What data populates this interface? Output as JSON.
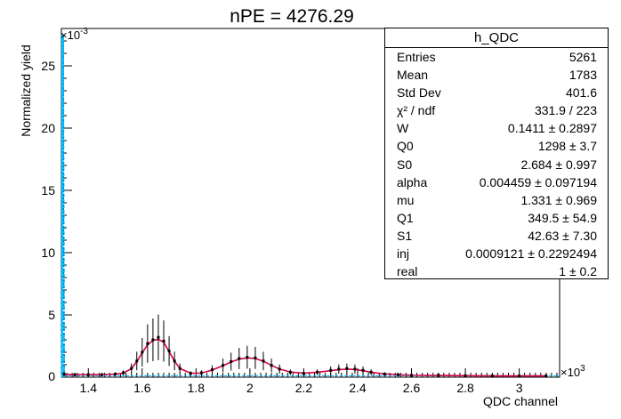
{
  "chart_data": {
    "type": "line",
    "title": "nPE = 4276.29",
    "xlabel": "QDC channel",
    "ylabel": "Normalized yield",
    "x_multiplier": "×10",
    "x_multiplier_exp": "3",
    "y_multiplier": "×10",
    "y_multiplier_exp": "-3",
    "xlim": [
      1.3,
      3.15
    ],
    "ylim": [
      0,
      28
    ],
    "x_ticks": [
      "1.4",
      "1.6",
      "1.8",
      "2",
      "2.2",
      "2.4",
      "2.6",
      "2.8",
      "3"
    ],
    "y_ticks": [
      "5",
      "10",
      "15",
      "20",
      "25"
    ],
    "origin_label": "0",
    "grid": false,
    "series": [
      {
        "role": "data points",
        "color": "#000000",
        "x": [
          1.31,
          1.35,
          1.4,
          1.45,
          1.5,
          1.53,
          1.56,
          1.58,
          1.6,
          1.62,
          1.64,
          1.66,
          1.68,
          1.7,
          1.72,
          1.74,
          1.78,
          1.82,
          1.86,
          1.9,
          1.93,
          1.96,
          1.99,
          2.02,
          2.05,
          2.08,
          2.11,
          2.15,
          2.2,
          2.25,
          2.3,
          2.33,
          2.36,
          2.39,
          2.42,
          2.45,
          2.5,
          2.55,
          2.6,
          2.7,
          2.8,
          2.9,
          3.0,
          3.1
        ],
        "y": [
          0.25,
          0.2,
          0.2,
          0.2,
          0.25,
          0.35,
          0.7,
          1.3,
          2.0,
          2.7,
          3.0,
          3.2,
          2.9,
          2.1,
          1.3,
          0.7,
          0.3,
          0.35,
          0.6,
          0.95,
          1.25,
          1.5,
          1.6,
          1.55,
          1.3,
          0.95,
          0.65,
          0.4,
          0.3,
          0.4,
          0.55,
          0.65,
          0.7,
          0.65,
          0.55,
          0.4,
          0.25,
          0.2,
          0.15,
          0.15,
          0.12,
          0.1,
          0.1,
          0.1
        ]
      },
      {
        "role": "fit",
        "color": "#d8004a",
        "x": [
          1.31,
          1.35,
          1.4,
          1.45,
          1.5,
          1.53,
          1.56,
          1.58,
          1.6,
          1.62,
          1.64,
          1.66,
          1.68,
          1.7,
          1.72,
          1.74,
          1.78,
          1.82,
          1.86,
          1.9,
          1.93,
          1.96,
          1.99,
          2.02,
          2.05,
          2.08,
          2.11,
          2.15,
          2.2,
          2.25,
          2.3,
          2.33,
          2.36,
          2.39,
          2.42,
          2.45,
          2.5,
          2.55,
          2.6,
          2.7,
          2.8,
          2.9,
          3.0,
          3.1
        ],
        "y": [
          0.22,
          0.2,
          0.2,
          0.2,
          0.24,
          0.33,
          0.68,
          1.25,
          1.95,
          2.6,
          2.95,
          3.05,
          2.8,
          2.05,
          1.3,
          0.7,
          0.32,
          0.33,
          0.58,
          0.92,
          1.22,
          1.45,
          1.55,
          1.5,
          1.28,
          0.95,
          0.65,
          0.42,
          0.32,
          0.4,
          0.52,
          0.6,
          0.65,
          0.62,
          0.52,
          0.4,
          0.26,
          0.2,
          0.16,
          0.14,
          0.12,
          0.1,
          0.1,
          0.1
        ]
      },
      {
        "role": "pedestal",
        "color": "#0077cc",
        "x": [
          1.302,
          1.306,
          1.31
        ],
        "y": [
          0,
          27.5,
          0
        ]
      }
    ],
    "colors": {
      "data": "#000000",
      "fit": "#d8004a",
      "pedestal": "#0077cc",
      "components": "#00bfff"
    }
  },
  "stats": {
    "title": "h_QDC",
    "rows": [
      {
        "name": "Entries",
        "value": "5261"
      },
      {
        "name": "Mean",
        "value": "1783"
      },
      {
        "name": "Std Dev",
        "value": "401.6"
      },
      {
        "name": "χ² / ndf",
        "value": "331.9 / 223"
      },
      {
        "name": "W",
        "value": "0.1411 ± 0.2897"
      },
      {
        "name": "Q0",
        "value": "1298 ± 3.7"
      },
      {
        "name": "S0",
        "value": "2.684 ± 0.997"
      },
      {
        "name": "alpha",
        "value": "0.004459 ± 0.097194"
      },
      {
        "name": "mu",
        "value": "1.331 ± 0.969"
      },
      {
        "name": "Q1",
        "value": "349.5 ± 54.9"
      },
      {
        "name": "S1",
        "value": "42.63 ± 7.30"
      },
      {
        "name": "inj",
        "value": "0.0009121 ± 0.2292494"
      },
      {
        "name": "real",
        "value": "1 ± 0.2"
      }
    ]
  }
}
